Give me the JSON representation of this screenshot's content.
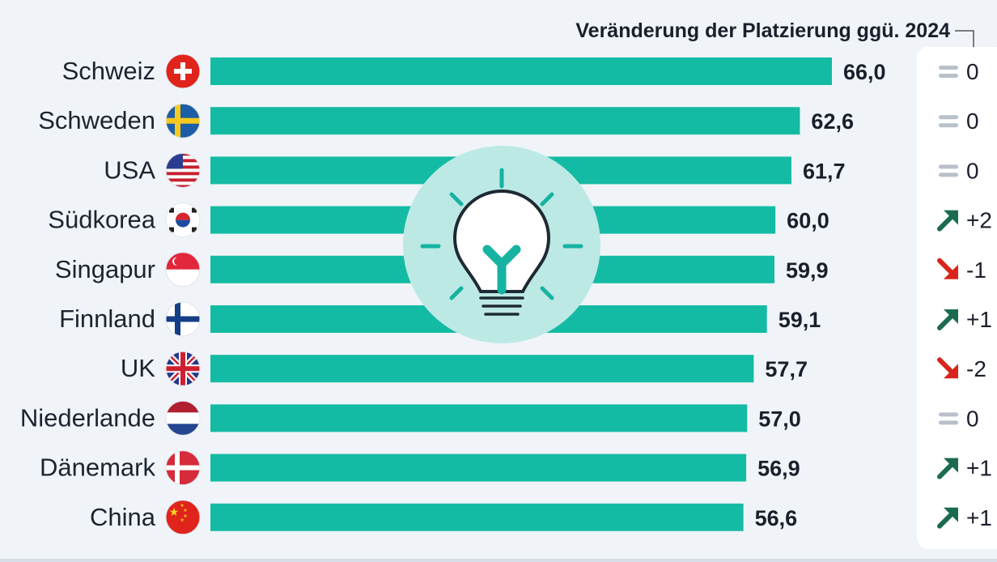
{
  "header": {
    "change_title": "Veränderung der Platzierung ggü. 2024"
  },
  "colors": {
    "bar": "#14bba4",
    "up": "#1b6b52",
    "down": "#d9241c",
    "same": "#b8c0cb",
    "bulb_bg": "#bde9e5",
    "bulb_accent": "#16b3a2"
  },
  "chart_data": {
    "type": "bar",
    "orientation": "horizontal",
    "categories": [
      "Schweiz",
      "Schweden",
      "USA",
      "Südkorea",
      "Singapur",
      "Finnland",
      "UK",
      "Niederlande",
      "Dänemark",
      "China"
    ],
    "values": [
      66.0,
      62.6,
      61.7,
      60.0,
      59.9,
      59.1,
      57.7,
      57.0,
      56.9,
      56.6
    ],
    "value_labels": [
      "66,0",
      "62,6",
      "61,7",
      "60,0",
      "59,9",
      "59,1",
      "57,7",
      "57,0",
      "56,9",
      "56,6"
    ],
    "flags": [
      "ch",
      "se",
      "us",
      "kr",
      "sg",
      "fi",
      "uk",
      "nl",
      "dk",
      "cn"
    ],
    "rank_change": [
      {
        "dir": "same",
        "text": "0"
      },
      {
        "dir": "same",
        "text": "0"
      },
      {
        "dir": "same",
        "text": "0"
      },
      {
        "dir": "up",
        "text": "+2"
      },
      {
        "dir": "down",
        "text": "-1"
      },
      {
        "dir": "up",
        "text": "+1"
      },
      {
        "dir": "down",
        "text": "-2"
      },
      {
        "dir": "same",
        "text": "0"
      },
      {
        "dir": "up",
        "text": "+1"
      },
      {
        "dir": "up",
        "text": "+1"
      }
    ]
  }
}
